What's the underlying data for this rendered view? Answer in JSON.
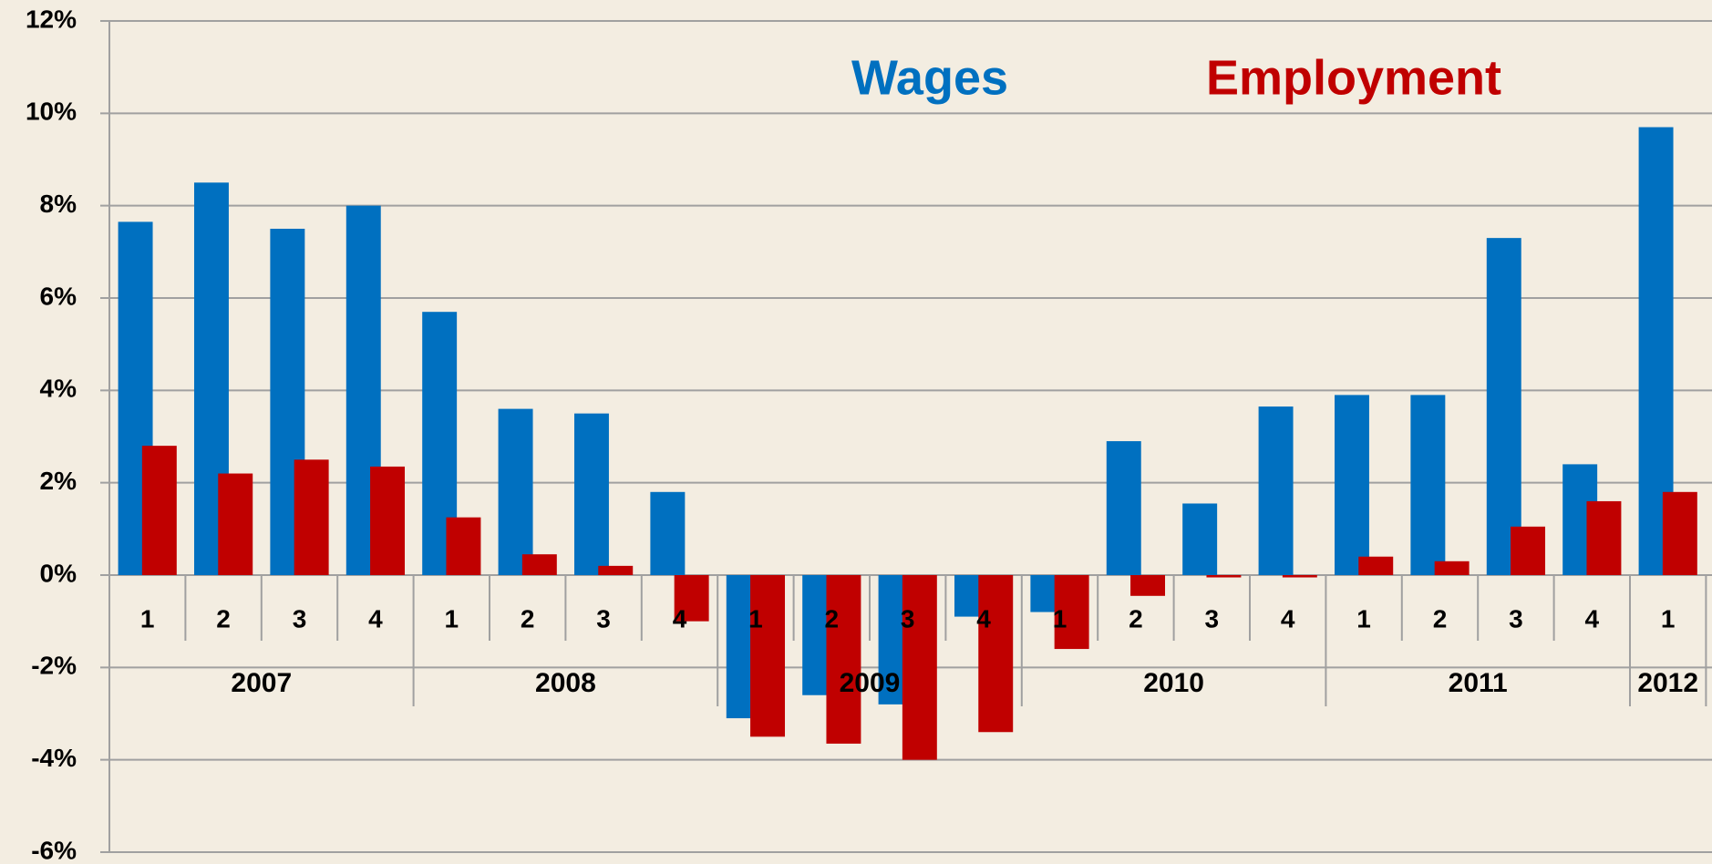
{
  "chart_data": {
    "type": "bar",
    "categories": [
      "1",
      "2",
      "3",
      "4",
      "1",
      "2",
      "3",
      "4",
      "1",
      "2",
      "3",
      "4",
      "1",
      "2",
      "3",
      "4",
      "1",
      "2",
      "3",
      "4",
      "1"
    ],
    "groups": [
      "2007",
      "2008",
      "2009",
      "2010",
      "2011",
      "2012"
    ],
    "series": [
      {
        "name": "Wages",
        "color": "#0070c0",
        "values": [
          7.65,
          8.5,
          7.5,
          8.0,
          5.7,
          3.6,
          3.5,
          1.8,
          -3.1,
          -2.6,
          -2.8,
          -0.9,
          -0.8,
          2.9,
          1.55,
          3.65,
          3.9,
          3.9,
          7.3,
          2.4,
          9.7
        ]
      },
      {
        "name": "Employment",
        "color": "#c00000",
        "values": [
          2.8,
          2.2,
          2.5,
          2.35,
          1.25,
          0.45,
          0.2,
          -1.0,
          -3.5,
          -3.65,
          -4.0,
          -3.4,
          -1.6,
          -0.45,
          -0.05,
          -0.05,
          0.4,
          0.3,
          1.05,
          1.6,
          1.8
        ]
      }
    ],
    "ylim": [
      -6,
      12
    ],
    "yticks": [
      {
        "value": -6,
        "label": "-6%"
      },
      {
        "value": -4,
        "label": "-4%"
      },
      {
        "value": -2,
        "label": "-2%"
      },
      {
        "value": 0,
        "label": "0%"
      },
      {
        "value": 2,
        "label": "2%"
      },
      {
        "value": 4,
        "label": "4%"
      },
      {
        "value": 6,
        "label": "6%"
      },
      {
        "value": 8,
        "label": "8%"
      },
      {
        "value": 10,
        "label": "10%"
      },
      {
        "value": 12,
        "label": "12%"
      }
    ],
    "grid": true
  }
}
